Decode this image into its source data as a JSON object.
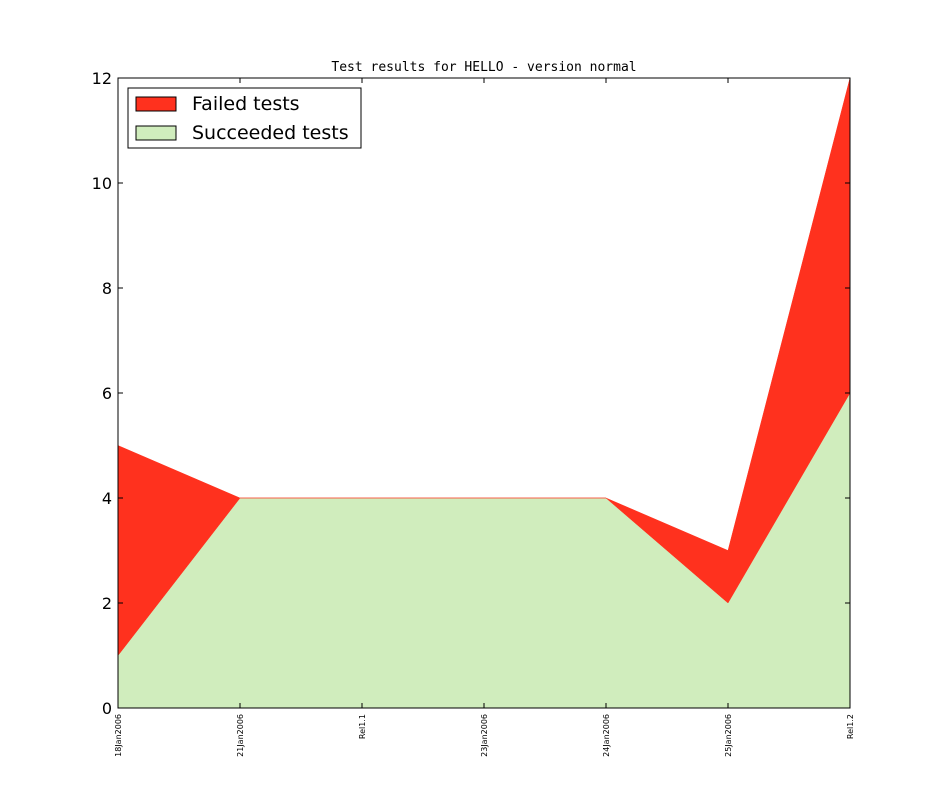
{
  "chart_data": {
    "type": "area",
    "stacked": true,
    "title": "Test results for HELLO - version normal",
    "xlabel": "",
    "ylabel": "",
    "categories": [
      "18Jan2006",
      "21Jan2006",
      "Rel1.1",
      "23Jan2006",
      "24Jan2006",
      "25Jan2006",
      "Rel1.2"
    ],
    "ylim": [
      0,
      12
    ],
    "yticks": [
      0,
      2,
      4,
      6,
      8,
      10,
      12
    ],
    "series": [
      {
        "name": "Succeeded tests",
        "values": [
          1,
          4,
          4,
          4,
          4,
          2,
          6
        ],
        "color": "#d0edbd"
      },
      {
        "name": "Failed tests",
        "values": [
          4,
          0,
          0,
          0,
          0,
          1,
          6
        ],
        "color": "#ff311e"
      }
    ],
    "legend": {
      "position": "top-left",
      "entries": [
        "Failed tests",
        "Succeeded tests"
      ]
    },
    "grid": false
  }
}
